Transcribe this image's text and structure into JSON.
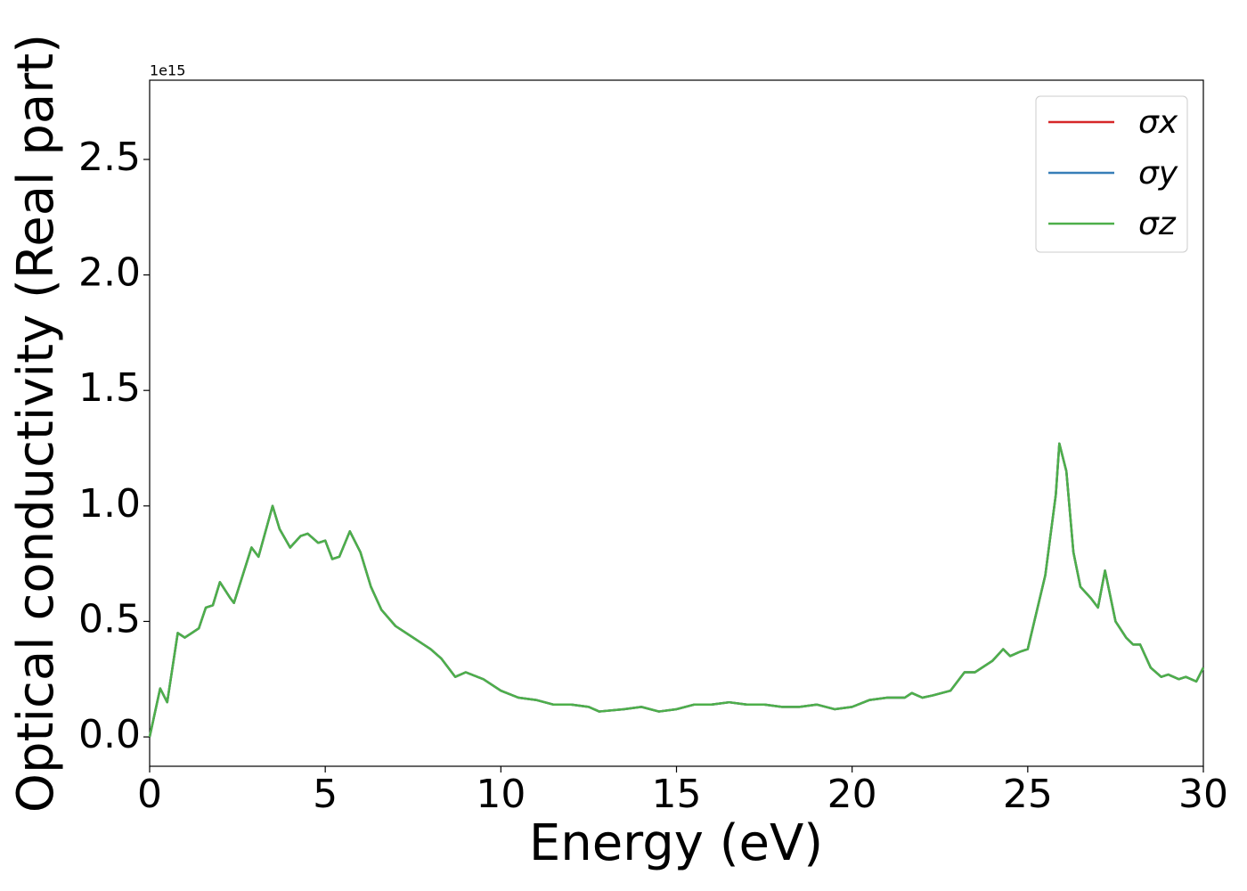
{
  "chart_data": {
    "type": "line",
    "y_label": "Optical conductivity (Real part)",
    "x_label": "Energy (eV)",
    "y_offset_text": "1e15",
    "x": [
      0,
      0.3,
      0.5,
      0.8,
      1.0,
      1.2,
      1.4,
      1.6,
      1.8,
      2.0,
      2.3,
      2.4,
      2.9,
      3.1,
      3.5,
      3.7,
      4.0,
      4.3,
      4.5,
      4.8,
      5.0,
      5.2,
      5.4,
      5.7,
      6.0,
      6.3,
      6.6,
      7.0,
      7.5,
      7.8,
      8.0,
      8.3,
      8.7,
      9.0,
      9.5,
      10.0,
      10.5,
      11.0,
      11.5,
      12.0,
      12.5,
      12.8,
      13.5,
      14.0,
      14.5,
      15.0,
      15.5,
      16.0,
      16.5,
      17.0,
      17.5,
      18.0,
      18.5,
      19.0,
      19.5,
      20.0,
      20.5,
      21.0,
      21.5,
      21.7,
      22.0,
      22.3,
      22.8,
      23.2,
      23.5,
      24.0,
      24.3,
      24.5,
      24.8,
      25.0,
      25.5,
      25.8,
      25.9,
      26.1,
      26.3,
      26.5,
      26.8,
      27.0,
      27.2,
      27.5,
      27.8,
      28.0,
      28.2,
      28.5,
      28.8,
      29.0,
      29.3,
      29.5,
      29.8,
      30.0
    ],
    "series": [
      {
        "name": "σx",
        "color": "#d62728",
        "values": [
          0,
          0.21,
          0.15,
          0.45,
          0.43,
          0.45,
          0.47,
          0.56,
          0.57,
          0.67,
          0.6,
          0.58,
          0.82,
          0.78,
          1.0,
          0.9,
          0.82,
          0.87,
          0.88,
          0.84,
          0.85,
          0.77,
          0.78,
          0.89,
          0.8,
          0.65,
          0.55,
          0.48,
          0.43,
          0.4,
          0.38,
          0.34,
          0.26,
          0.28,
          0.25,
          0.2,
          0.17,
          0.16,
          0.14,
          0.14,
          0.13,
          0.11,
          0.12,
          0.13,
          0.11,
          0.12,
          0.14,
          0.14,
          0.15,
          0.14,
          0.14,
          0.13,
          0.13,
          0.14,
          0.12,
          0.13,
          0.16,
          0.17,
          0.17,
          0.19,
          0.17,
          0.18,
          0.2,
          0.28,
          0.28,
          0.33,
          0.38,
          0.35,
          0.37,
          0.38,
          0.7,
          1.05,
          1.27,
          1.15,
          0.8,
          0.65,
          0.6,
          0.56,
          0.72,
          0.5,
          0.43,
          0.4,
          0.4,
          0.3,
          0.26,
          0.27,
          0.25,
          0.26,
          0.24,
          0.3
        ]
      },
      {
        "name": "σy",
        "color": "#377eb8",
        "values": [
          0,
          0.21,
          0.15,
          0.45,
          0.43,
          0.45,
          0.47,
          0.56,
          0.57,
          0.67,
          0.6,
          0.58,
          0.82,
          0.78,
          1.0,
          0.9,
          0.82,
          0.87,
          0.88,
          0.84,
          0.85,
          0.77,
          0.78,
          0.89,
          0.8,
          0.65,
          0.55,
          0.48,
          0.43,
          0.4,
          0.38,
          0.34,
          0.26,
          0.28,
          0.25,
          0.2,
          0.17,
          0.16,
          0.14,
          0.14,
          0.13,
          0.11,
          0.12,
          0.13,
          0.11,
          0.12,
          0.14,
          0.14,
          0.15,
          0.14,
          0.14,
          0.13,
          0.13,
          0.14,
          0.12,
          0.13,
          0.16,
          0.17,
          0.17,
          0.19,
          0.17,
          0.18,
          0.2,
          0.28,
          0.28,
          0.33,
          0.38,
          0.35,
          0.37,
          0.38,
          0.7,
          1.05,
          1.27,
          1.15,
          0.8,
          0.65,
          0.6,
          0.56,
          0.72,
          0.5,
          0.43,
          0.4,
          0.4,
          0.3,
          0.26,
          0.27,
          0.25,
          0.26,
          0.24,
          0.3
        ]
      },
      {
        "name": "σz",
        "color": "#4daf4a",
        "values": [
          0,
          0.21,
          0.15,
          0.45,
          0.43,
          0.45,
          0.47,
          0.56,
          0.57,
          0.67,
          0.6,
          0.58,
          0.82,
          0.78,
          1.0,
          0.9,
          0.82,
          0.87,
          0.88,
          0.84,
          0.85,
          0.77,
          0.78,
          0.89,
          0.8,
          0.65,
          0.55,
          0.48,
          0.43,
          0.4,
          0.38,
          0.34,
          0.26,
          0.28,
          0.25,
          0.2,
          0.17,
          0.16,
          0.14,
          0.14,
          0.13,
          0.11,
          0.12,
          0.13,
          0.11,
          0.12,
          0.14,
          0.14,
          0.15,
          0.14,
          0.14,
          0.13,
          0.13,
          0.14,
          0.12,
          0.13,
          0.16,
          0.17,
          0.17,
          0.19,
          0.17,
          0.18,
          0.2,
          0.28,
          0.28,
          0.33,
          0.38,
          0.35,
          0.37,
          0.38,
          0.7,
          1.05,
          1.27,
          1.15,
          0.8,
          0.65,
          0.6,
          0.56,
          0.72,
          0.5,
          0.43,
          0.4,
          0.4,
          0.3,
          0.26,
          0.27,
          0.25,
          0.26,
          0.24,
          0.3
        ]
      }
    ],
    "xlim": [
      0,
      30
    ],
    "xticks": [
      0,
      5,
      10,
      15,
      20,
      25,
      30
    ],
    "ylim": [
      -0.127,
      2.843
    ],
    "yticks": [
      {
        "value": 0,
        "label": "0.0"
      },
      0.5,
      {
        "value": 1,
        "label": "1.0"
      },
      1.5,
      {
        "value": 2,
        "label": "2.0"
      },
      2.5
    ],
    "legend": "upper right",
    "grid": false
  }
}
